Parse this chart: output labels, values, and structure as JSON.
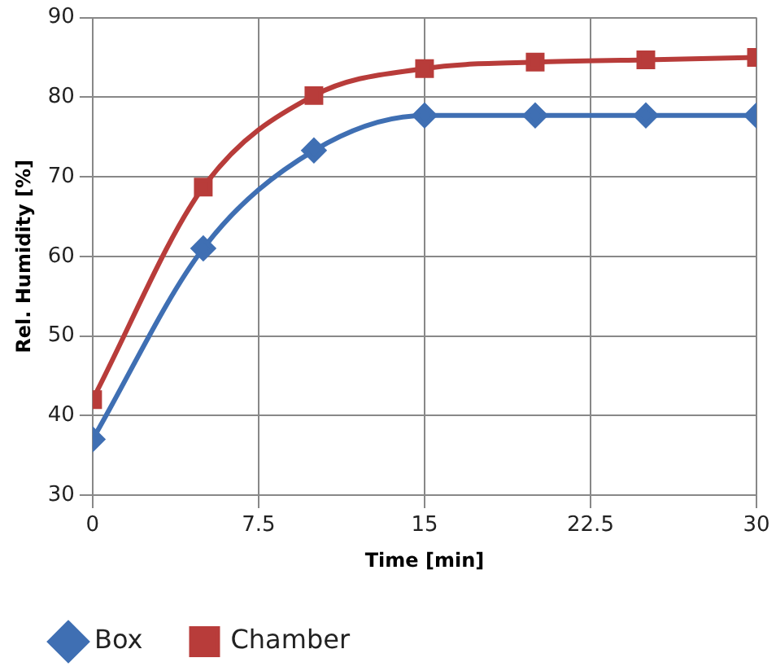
{
  "chart_data": {
    "type": "line",
    "xlabel": "Time [min]",
    "ylabel": "Rel. Humidity [%]",
    "x": [
      0,
      5,
      10,
      15,
      20,
      25,
      30
    ],
    "series": [
      {
        "name": "Box",
        "color": "#3f6fb3",
        "marker": "diamond",
        "values": [
          37,
          61,
          73.3,
          77.7,
          77.7,
          77.7,
          77.7
        ]
      },
      {
        "name": "Chamber",
        "color": "#b83c3a",
        "marker": "square",
        "values": [
          42,
          68.7,
          80.2,
          83.6,
          84.4,
          84.7,
          85
        ]
      }
    ],
    "xlim": [
      0,
      30
    ],
    "xticks": [
      0,
      7.5,
      15,
      22.5,
      30
    ],
    "ylim": [
      30,
      90
    ],
    "yticks": [
      30,
      40,
      50,
      60,
      70,
      80,
      90
    ],
    "grid": true,
    "legend": "bottom left"
  }
}
